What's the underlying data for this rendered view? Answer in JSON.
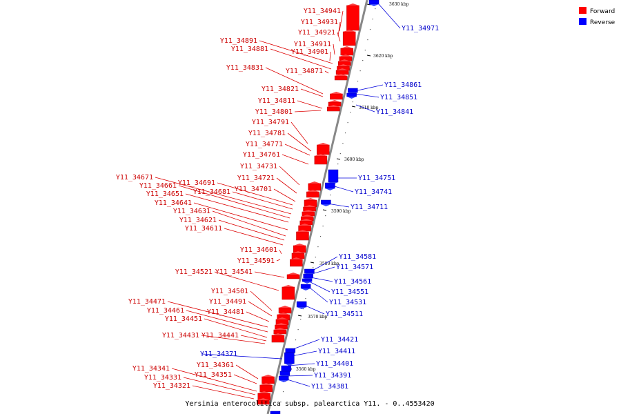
{
  "legend": [
    {
      "label": "Forward",
      "color": "#ff0000"
    },
    {
      "label": "Reverse",
      "color": "#0000ff"
    }
  ],
  "caption": "Yersinia enterocolitica subsp. palearctica Y11. - 0..4553420",
  "colors": {
    "forward": "#ff0000",
    "reverse": "#0000ff",
    "axis": "#888888"
  },
  "ticks": [
    "3630 kbp",
    "3620 kbp",
    "3610 kbp",
    "3600 kbp",
    "3590 kbp",
    "3580 kbp",
    "3570 kbp",
    "3560 kbp"
  ],
  "genes_forward": [
    "Y11_34941",
    "Y11_34931",
    "Y11_34921",
    "Y11_34911",
    "Y11_34901",
    "Y11_34891",
    "Y11_34881",
    "Y11_34871",
    "Y11_34831",
    "Y11_34821",
    "Y11_34811",
    "Y11_34801",
    "Y11_34791",
    "Y11_34781",
    "Y11_34771",
    "Y11_34761",
    "Y11_34731",
    "Y11_34721",
    "Y11_34701",
    "Y11_34691",
    "Y11_34681",
    "Y11_34671",
    "Y11_34661",
    "Y11_34651",
    "Y11_34641",
    "Y11_34631",
    "Y11_34621",
    "Y11_34611",
    "Y11_34601",
    "Y11_34591",
    "Y11_34541",
    "Y11_34521",
    "Y11_34501",
    "Y11_34491",
    "Y11_34481",
    "Y11_34471",
    "Y11_34461",
    "Y11_34451",
    "Y11_34441",
    "Y11_34431",
    "Y11_34361",
    "Y11_34351",
    "Y11_34341",
    "Y11_34331",
    "Y11_34321"
  ],
  "genes_reverse": [
    "Y11_34971",
    "Y11_34861",
    "Y11_34851",
    "Y11_34841",
    "Y11_34751",
    "Y11_34741",
    "Y11_34711",
    "Y11_34581",
    "Y11_34571",
    "Y11_34561",
    "Y11_34551",
    "Y11_34531",
    "Y11_34511",
    "Y11_34421",
    "Y11_34411",
    "Y11_34401",
    "Y11_34391",
    "Y11_34381",
    "Y11_34371"
  ]
}
